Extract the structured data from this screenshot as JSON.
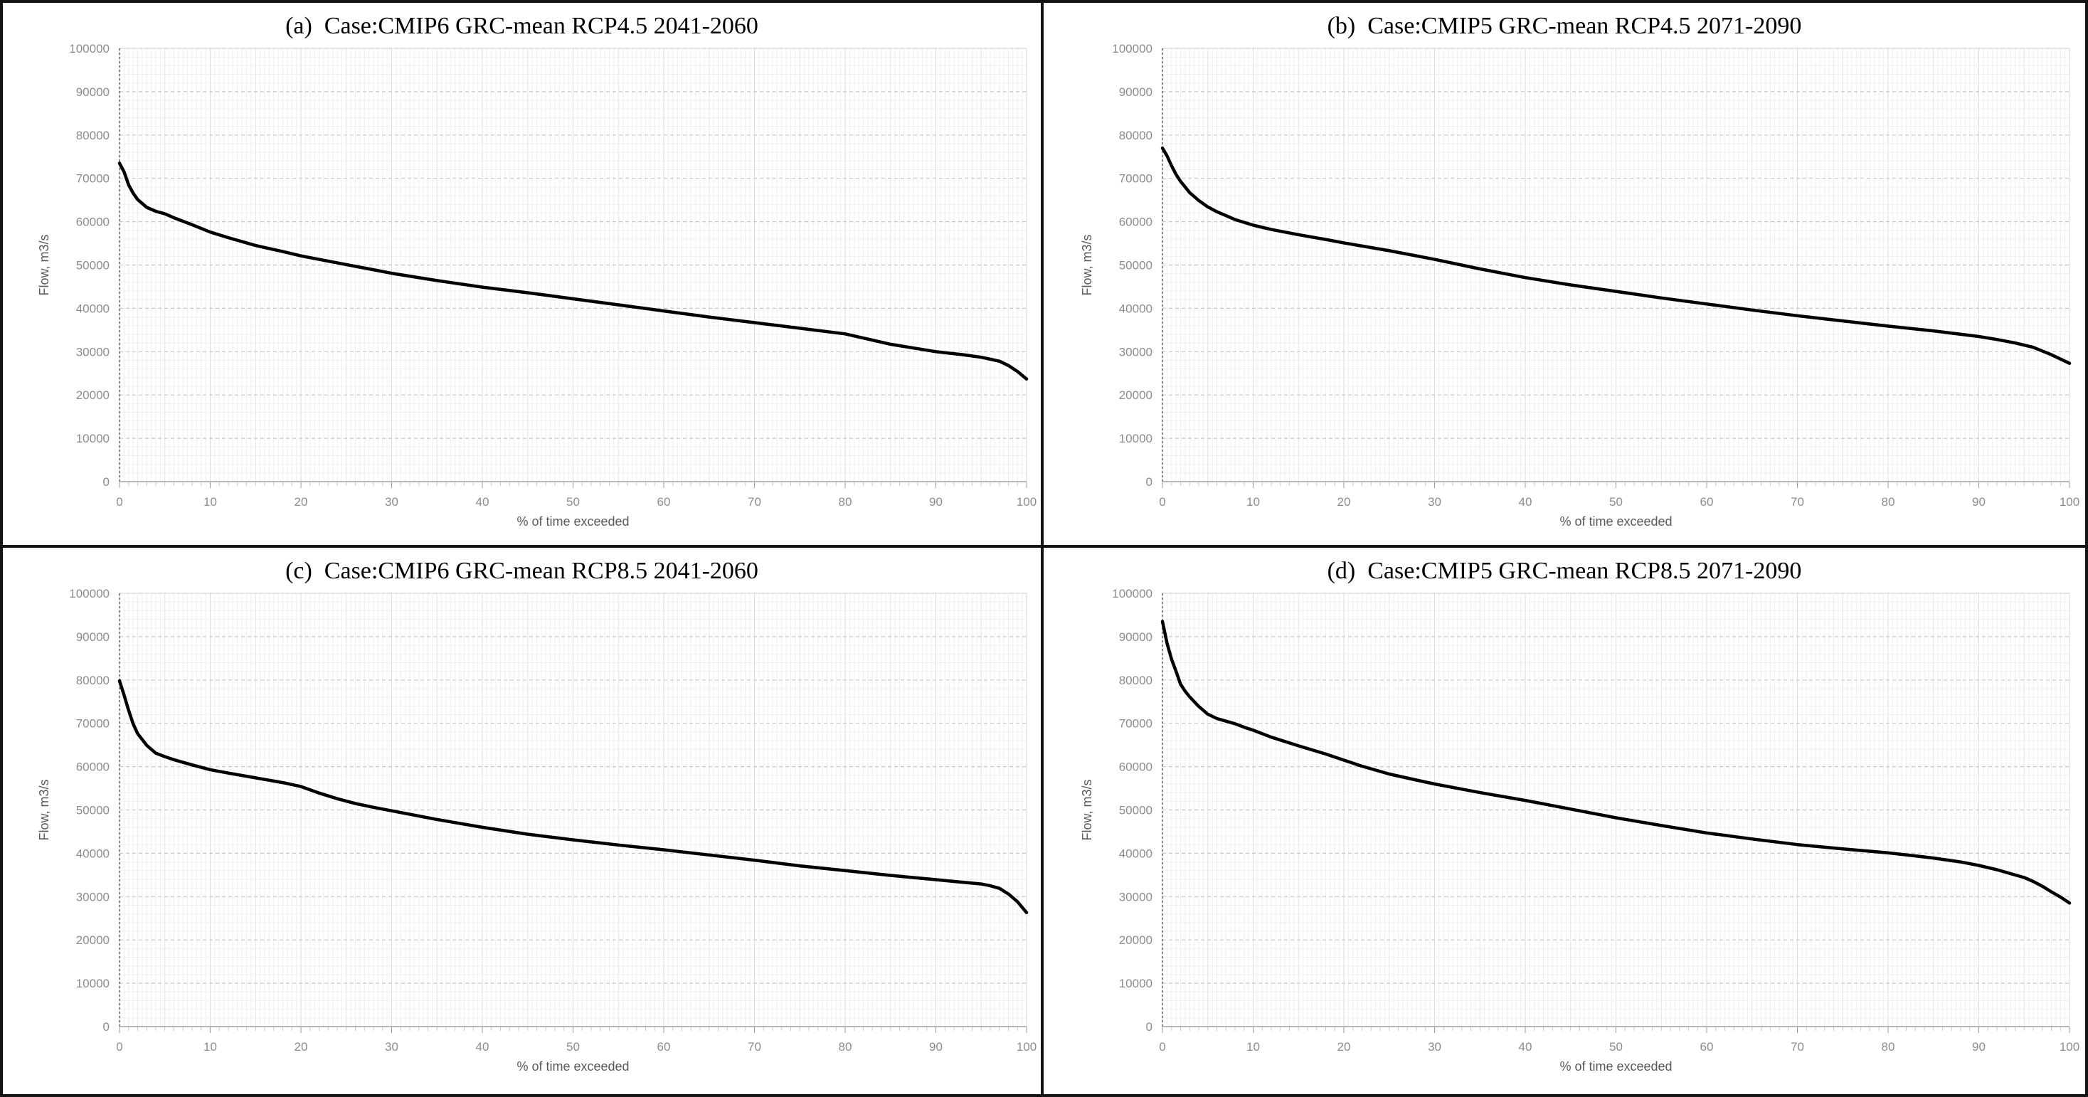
{
  "figure": {
    "x_axis_label": "% of time exceeded",
    "y_axis_label": "Flow, m3/s",
    "x_ticks": [
      "0",
      "10",
      "20",
      "30",
      "40",
      "50",
      "60",
      "70",
      "80",
      "90",
      "100"
    ],
    "y_ticks": [
      "100000",
      "90000",
      "80000",
      "70000",
      "60000",
      "50000",
      "40000",
      "30000",
      "20000",
      "10000",
      "0"
    ],
    "curve_color": "#000000",
    "grid_minor_color": "#efefef",
    "grid_mid_color": "#e3e3e3",
    "grid_strong_color": "#dadada",
    "grid_major_dashed_color": "#c7c7c7",
    "axis_left_color": "#6a6a6a",
    "axis_bottom_color": "#a0a0a0",
    "tick_label_color": "#8c8c8c",
    "axis_title_color": "#595959",
    "border_color": "#141414"
  },
  "chart_data": [
    {
      "type": "line",
      "title": "(a)  Case:CMIP6 GRC-mean RCP4.5 2041-2060",
      "xlabel": "% of time exceeded",
      "ylabel": "Flow, m3/s",
      "xlim": [
        0,
        100
      ],
      "ylim": [
        0,
        100000
      ],
      "x_tick_step": 10,
      "y_tick_step": 10000,
      "grid": true,
      "legend": "none",
      "series": [
        {
          "name": "flow-duration-curve",
          "points": [
            [
              0,
              73500
            ],
            [
              0.5,
              71500
            ],
            [
              1,
              68500
            ],
            [
              1.5,
              66600
            ],
            [
              2,
              65100
            ],
            [
              3,
              63300
            ],
            [
              4,
              62400
            ],
            [
              5,
              61800
            ],
            [
              6,
              60900
            ],
            [
              8,
              59300
            ],
            [
              10,
              57600
            ],
            [
              12,
              56300
            ],
            [
              15,
              54500
            ],
            [
              18,
              53100
            ],
            [
              20,
              52100
            ],
            [
              25,
              50100
            ],
            [
              30,
              48100
            ],
            [
              35,
              46400
            ],
            [
              40,
              44900
            ],
            [
              45,
              43600
            ],
            [
              50,
              42200
            ],
            [
              55,
              40800
            ],
            [
              60,
              39400
            ],
            [
              65,
              38000
            ],
            [
              70,
              36700
            ],
            [
              75,
              35400
            ],
            [
              80,
              34100
            ],
            [
              85,
              31700
            ],
            [
              90,
              30000
            ],
            [
              93,
              29300
            ],
            [
              95,
              28700
            ],
            [
              97,
              27800
            ],
            [
              98,
              26800
            ],
            [
              99,
              25400
            ],
            [
              100,
              23700
            ]
          ]
        }
      ]
    },
    {
      "type": "line",
      "title": "(b)  Case:CMIP5 GRC-mean RCP4.5 2071-2090",
      "xlabel": "% of time exceeded",
      "ylabel": "Flow, m3/s",
      "xlim": [
        0,
        100
      ],
      "ylim": [
        0,
        100000
      ],
      "x_tick_step": 10,
      "y_tick_step": 10000,
      "grid": true,
      "legend": "none",
      "series": [
        {
          "name": "flow-duration-curve",
          "points": [
            [
              0,
              77000
            ],
            [
              0.5,
              75200
            ],
            [
              1,
              72900
            ],
            [
              1.5,
              70900
            ],
            [
              2,
              69300
            ],
            [
              3,
              66700
            ],
            [
              4,
              64900
            ],
            [
              5,
              63400
            ],
            [
              6,
              62300
            ],
            [
              8,
              60500
            ],
            [
              10,
              59200
            ],
            [
              12,
              58200
            ],
            [
              15,
              57000
            ],
            [
              18,
              55900
            ],
            [
              20,
              55100
            ],
            [
              25,
              53300
            ],
            [
              30,
              51300
            ],
            [
              35,
              49100
            ],
            [
              40,
              47100
            ],
            [
              45,
              45400
            ],
            [
              50,
              43900
            ],
            [
              55,
              42400
            ],
            [
              60,
              41000
            ],
            [
              65,
              39600
            ],
            [
              70,
              38300
            ],
            [
              75,
              37100
            ],
            [
              80,
              35900
            ],
            [
              85,
              34800
            ],
            [
              90,
              33500
            ],
            [
              92,
              32800
            ],
            [
              94,
              32000
            ],
            [
              96,
              31000
            ],
            [
              98,
              29300
            ],
            [
              100,
              27300
            ]
          ]
        }
      ]
    },
    {
      "type": "line",
      "title": "(c)  Case:CMIP6 GRC-mean RCP8.5 2041-2060",
      "xlabel": "% of time exceeded",
      "ylabel": "Flow, m3/s",
      "xlim": [
        0,
        100
      ],
      "ylim": [
        0,
        100000
      ],
      "x_tick_step": 10,
      "y_tick_step": 10000,
      "grid": true,
      "legend": "none",
      "series": [
        {
          "name": "flow-duration-curve",
          "points": [
            [
              0,
              79800
            ],
            [
              0.5,
              76500
            ],
            [
              1,
              73000
            ],
            [
              1.5,
              69900
            ],
            [
              2,
              67600
            ],
            [
              3,
              64900
            ],
            [
              4,
              63100
            ],
            [
              5,
              62300
            ],
            [
              6,
              61600
            ],
            [
              8,
              60400
            ],
            [
              10,
              59300
            ],
            [
              12,
              58500
            ],
            [
              15,
              57400
            ],
            [
              18,
              56300
            ],
            [
              20,
              55400
            ],
            [
              22,
              53900
            ],
            [
              24,
              52600
            ],
            [
              26,
              51500
            ],
            [
              28,
              50600
            ],
            [
              30,
              49800
            ],
            [
              35,
              47800
            ],
            [
              40,
              46000
            ],
            [
              45,
              44400
            ],
            [
              50,
              43100
            ],
            [
              55,
              41900
            ],
            [
              60,
              40800
            ],
            [
              65,
              39600
            ],
            [
              70,
              38400
            ],
            [
              75,
              37100
            ],
            [
              80,
              36000
            ],
            [
              85,
              34900
            ],
            [
              88,
              34300
            ],
            [
              90,
              33900
            ],
            [
              92,
              33500
            ],
            [
              94,
              33100
            ],
            [
              95,
              32900
            ],
            [
              96,
              32500
            ],
            [
              97,
              31900
            ],
            [
              98,
              30600
            ],
            [
              99,
              28800
            ],
            [
              100,
              26300
            ]
          ]
        }
      ]
    },
    {
      "type": "line",
      "title": "(d)  Case:CMIP5 GRC-mean RCP8.5 2071-2090",
      "xlabel": "% of time exceeded",
      "ylabel": "Flow, m3/s",
      "xlim": [
        0,
        100
      ],
      "ylim": [
        0,
        100000
      ],
      "x_tick_step": 10,
      "y_tick_step": 10000,
      "grid": true,
      "legend": "none",
      "series": [
        {
          "name": "flow-duration-curve",
          "points": [
            [
              0,
              93500
            ],
            [
              0.5,
              88500
            ],
            [
              1,
              84800
            ],
            [
              1.5,
              82000
            ],
            [
              2,
              79000
            ],
            [
              2.5,
              77400
            ],
            [
              3,
              76100
            ],
            [
              4,
              73900
            ],
            [
              5,
              72100
            ],
            [
              6,
              71100
            ],
            [
              7,
              70500
            ],
            [
              8,
              69900
            ],
            [
              9,
              69100
            ],
            [
              10,
              68400
            ],
            [
              12,
              66800
            ],
            [
              15,
              64800
            ],
            [
              18,
              62900
            ],
            [
              20,
              61500
            ],
            [
              22,
              60100
            ],
            [
              25,
              58300
            ],
            [
              28,
              56900
            ],
            [
              30,
              56000
            ],
            [
              35,
              54000
            ],
            [
              40,
              52200
            ],
            [
              45,
              50200
            ],
            [
              50,
              48200
            ],
            [
              55,
              46400
            ],
            [
              60,
              44700
            ],
            [
              65,
              43300
            ],
            [
              70,
              42000
            ],
            [
              75,
              41000
            ],
            [
              80,
              40100
            ],
            [
              83,
              39400
            ],
            [
              85,
              38900
            ],
            [
              88,
              38000
            ],
            [
              90,
              37200
            ],
            [
              92,
              36200
            ],
            [
              94,
              35000
            ],
            [
              95,
              34400
            ],
            [
              96,
              33500
            ],
            [
              97,
              32400
            ],
            [
              98,
              31100
            ],
            [
              99,
              29900
            ],
            [
              100,
              28500
            ]
          ]
        }
      ]
    }
  ]
}
